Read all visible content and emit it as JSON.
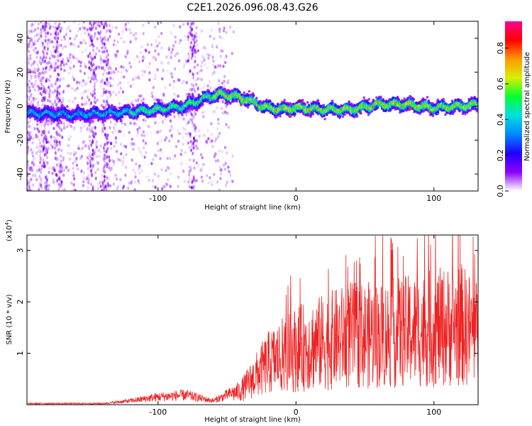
{
  "title": "C2E1.2026.096.08.43.G26",
  "colors": {
    "snr_line": "#ee2222",
    "colormap": [
      "#ffffff",
      "#8a00ff",
      "#2000ff",
      "#0088ff",
      "#00e0e0",
      "#00ff30",
      "#d8f000",
      "#ff9800",
      "#ff0000",
      "#ff0090"
    ]
  },
  "chart_data": [
    {
      "type": "heatmap",
      "name": "spectrogram",
      "xlabel": "Height of straight line (km)",
      "ylabel": "Frequency (Hz)",
      "xlim": [
        -195,
        132
      ],
      "ylim": [
        -50,
        50
      ],
      "xticks": [
        -100,
        0,
        100
      ],
      "yticks": [
        -40,
        -20,
        0,
        20,
        40
      ],
      "colorbar": {
        "label": "Normalized spectral amplitude",
        "range": [
          0,
          0.95
        ],
        "ticks": [
          0.0,
          0.2,
          0.4,
          0.6,
          0.8
        ]
      },
      "ridge_center_hz": {
        "x": [
          -195,
          -160,
          -130,
          -100,
          -80,
          -65,
          -55,
          -45,
          -35,
          -28,
          -20,
          -10,
          0,
          20,
          40,
          60,
          80,
          100,
          120,
          132
        ],
        "y": [
          -4,
          -5,
          -4,
          -2,
          0,
          5,
          7,
          6,
          4,
          1,
          -1,
          -2,
          -1,
          -2,
          -2,
          1,
          1,
          -1,
          0,
          1
        ]
      }
    },
    {
      "type": "line",
      "name": "snr",
      "xlabel": "Height of straight line (km)",
      "ylabel": "SNR (10 * v/v)",
      "multiplier_label": "(x10",
      "multiplier_exponent": "4",
      "xlim": [
        -195,
        132
      ],
      "ylim": [
        0,
        3.3
      ],
      "xticks": [
        -100,
        0,
        100
      ],
      "yticks": [
        1,
        2,
        3
      ],
      "envelope": {
        "x": [
          -195,
          -140,
          -120,
          -100,
          -80,
          -60,
          -40,
          -20,
          0,
          20,
          40,
          60,
          80,
          100,
          120,
          132
        ],
        "y": [
          0.03,
          0.03,
          0.1,
          0.2,
          0.25,
          0.1,
          0.4,
          1.2,
          1.6,
          1.8,
          2.0,
          2.0,
          2.1,
          2.2,
          2.3,
          2.0
        ]
      }
    }
  ]
}
